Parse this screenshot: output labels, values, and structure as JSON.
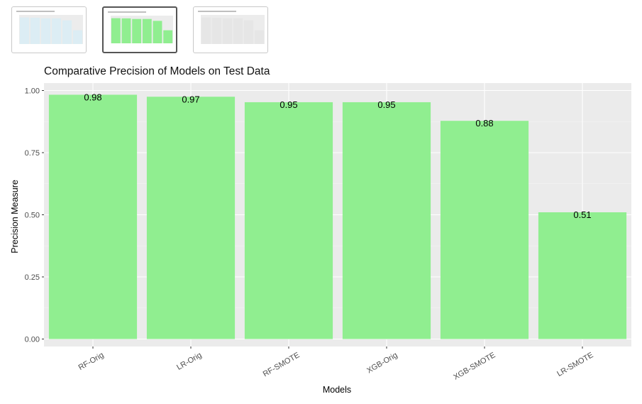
{
  "thumbnails": [
    {
      "name": "thumbnail-1",
      "fill": "#dcedf4",
      "active": false
    },
    {
      "name": "thumbnail-2",
      "fill": "#90ee90",
      "active": true
    },
    {
      "name": "thumbnail-3",
      "fill": "#e6e6e6",
      "active": false
    }
  ],
  "colors": {
    "panel_bg": "#ebebeb",
    "grid_major": "#ffffff",
    "bar_fill": "#90ee90"
  },
  "chart_data": {
    "type": "bar",
    "title": "Comparative Precision of Models on Test Data",
    "xlabel": "Models",
    "ylabel": "Precision Measure",
    "categories": [
      "RF-Orig",
      "LR-Orig",
      "RF-SMOTE",
      "XGB-Orig",
      "XGB-SMOTE",
      "LR-SMOTE"
    ],
    "values": [
      0.983,
      0.975,
      0.953,
      0.953,
      0.878,
      0.51
    ],
    "value_labels": [
      "0.98",
      "0.97",
      "0.95",
      "0.95",
      "0.88",
      "0.51"
    ],
    "yticks": [
      "0.00",
      "0.25",
      "0.50",
      "0.75",
      "1.00"
    ],
    "ylim": [
      -0.03,
      1.03
    ],
    "grid": true,
    "legend": "none"
  }
}
